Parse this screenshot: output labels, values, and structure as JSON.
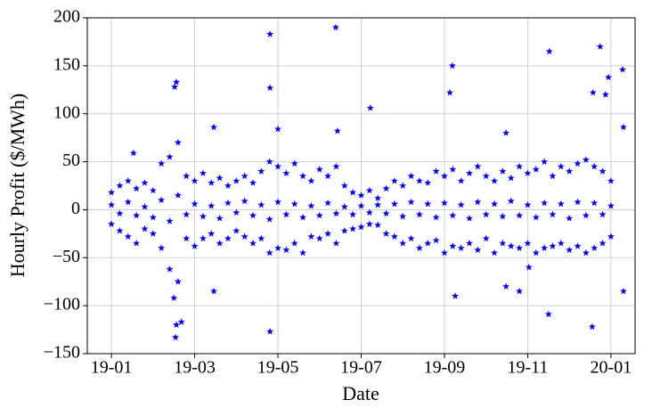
{
  "chart_data": {
    "type": "scatter",
    "x_label": "Date",
    "y_label": "Hourly Profit ($/MWh)",
    "color": "#0000ff",
    "marker": "star",
    "grid": true,
    "xlim": [
      -0.58,
      12.58
    ],
    "xticks": [
      {
        "value": 0,
        "label": "19-01"
      },
      {
        "value": 2,
        "label": "19-03"
      },
      {
        "value": 4,
        "label": "19-05"
      },
      {
        "value": 6,
        "label": "19-07"
      },
      {
        "value": 8,
        "label": "19-09"
      },
      {
        "value": 10,
        "label": "19-11"
      },
      {
        "value": 12,
        "label": "20-01"
      }
    ],
    "ylim": [
      -150,
      200
    ],
    "yticks": [
      {
        "value": -150,
        "label": "−150"
      },
      {
        "value": -100,
        "label": "−100"
      },
      {
        "value": -50,
        "label": "−50"
      },
      0,
      50,
      100,
      150,
      200
    ],
    "x": [
      0,
      0,
      0,
      0.2,
      0.2,
      0.2,
      0.4,
      0.4,
      0.4,
      0.6,
      0.6,
      0.6,
      0.8,
      0.8,
      0.8,
      1,
      1,
      1,
      1.2,
      1.2,
      1.2,
      1.4,
      1.4,
      1.4,
      1.6,
      1.6,
      1.6,
      1.8,
      1.8,
      1.8,
      2,
      2,
      2,
      2.2,
      2.2,
      2.2,
      2.4,
      2.4,
      2.4,
      2.6,
      2.6,
      2.6,
      2.8,
      2.8,
      2.8,
      3,
      3,
      3,
      3.2,
      3.2,
      3.2,
      3.4,
      3.4,
      3.4,
      3.6,
      3.6,
      3.6,
      3.8,
      3.8,
      3.8,
      4,
      4,
      4,
      4.2,
      4.2,
      4.2,
      4.4,
      4.4,
      4.4,
      4.6,
      4.6,
      4.6,
      4.8,
      4.8,
      4.8,
      5,
      5,
      5,
      5.2,
      5.2,
      5.2,
      5.4,
      5.4,
      5.4,
      5.6,
      5.6,
      5.6,
      5.8,
      5.8,
      5.8,
      6,
      6,
      6,
      6.2,
      6.2,
      6.2,
      6.4,
      6.4,
      6.4,
      6.6,
      6.6,
      6.6,
      6.8,
      6.8,
      6.8,
      7,
      7,
      7,
      7.2,
      7.2,
      7.2,
      7.4,
      7.4,
      7.4,
      7.6,
      7.6,
      7.6,
      7.8,
      7.8,
      7.8,
      8,
      8,
      8,
      8.2,
      8.2,
      8.2,
      8.4,
      8.4,
      8.4,
      8.6,
      8.6,
      8.6,
      8.8,
      8.8,
      8.8,
      9,
      9,
      9,
      9.2,
      9.2,
      9.2,
      9.4,
      9.4,
      9.4,
      9.6,
      9.6,
      9.6,
      9.8,
      9.8,
      9.8,
      10,
      10,
      10,
      10.2,
      10.2,
      10.2,
      10.4,
      10.4,
      10.4,
      10.6,
      10.6,
      10.6,
      10.8,
      10.8,
      10.8,
      11,
      11,
      11,
      11.2,
      11.2,
      11.2,
      11.4,
      11.4,
      11.4,
      11.6,
      11.6,
      11.6,
      11.8,
      11.8,
      11.8,
      12,
      12,
      12,
      3.81,
      5.39,
      3.81,
      3.81,
      1.56,
      1.52,
      1.54,
      1.56,
      1.5,
      1.68,
      6.22,
      8.19,
      8.13,
      10.52,
      11.74,
      12.28,
      11.57,
      11.87,
      11.94,
      10.5,
      11.55,
      8.26,
      2.46,
      2.46,
      4.0,
      5.43,
      12.3,
      12.3,
      10.03,
      9.8,
      9.48,
      9.48,
      0.53
    ],
    "values": [
      18,
      -15,
      5,
      25,
      -22,
      -4,
      30,
      -28,
      8,
      22,
      -35,
      -6,
      28,
      -20,
      3,
      20,
      -25,
      -8,
      48,
      -40,
      10,
      55,
      -62,
      -12,
      70,
      -75,
      15,
      35,
      -30,
      -5,
      30,
      -38,
      6,
      38,
      -30,
      -7,
      28,
      -25,
      4,
      33,
      -35,
      -9,
      25,
      -30,
      7,
      30,
      -22,
      -3,
      35,
      -28,
      9,
      28,
      -35,
      -6,
      40,
      -30,
      5,
      50,
      -45,
      -10,
      45,
      -40,
      8,
      38,
      -42,
      -5,
      48,
      -35,
      6,
      35,
      -45,
      -8,
      30,
      -28,
      4,
      42,
      -30,
      -6,
      35,
      -25,
      7,
      45,
      -35,
      -4,
      25,
      -22,
      3,
      18,
      -20,
      -5,
      15,
      -18,
      4,
      20,
      -15,
      -3,
      12,
      -16,
      5,
      22,
      -25,
      -4,
      30,
      -28,
      6,
      25,
      -35,
      -7,
      35,
      -30,
      8,
      30,
      -40,
      -5,
      28,
      -35,
      6,
      40,
      -32,
      -8,
      35,
      -45,
      7,
      42,
      -38,
      -6,
      30,
      -40,
      5,
      38,
      -35,
      -9,
      45,
      -42,
      8,
      35,
      -30,
      -5,
      30,
      -45,
      6,
      40,
      -35,
      -7,
      33,
      -38,
      9,
      45,
      -40,
      -6,
      38,
      -35,
      5,
      42,
      -45,
      -8,
      50,
      -40,
      7,
      35,
      -38,
      -5,
      45,
      -35,
      6,
      40,
      -42,
      -9,
      48,
      -38,
      8,
      52,
      -45,
      -6,
      45,
      -40,
      7,
      40,
      -35,
      -5,
      30,
      -28,
      4,
      183,
      190,
      127,
      -127,
      133,
      128,
      -133,
      -120,
      -92,
      -117,
      106,
      150,
      122,
      165,
      170,
      146,
      122,
      120,
      138,
      -109,
      -122,
      -90,
      86,
      -85,
      84,
      82,
      86,
      -85,
      -60,
      -85,
      80,
      -80,
      59
    ]
  }
}
